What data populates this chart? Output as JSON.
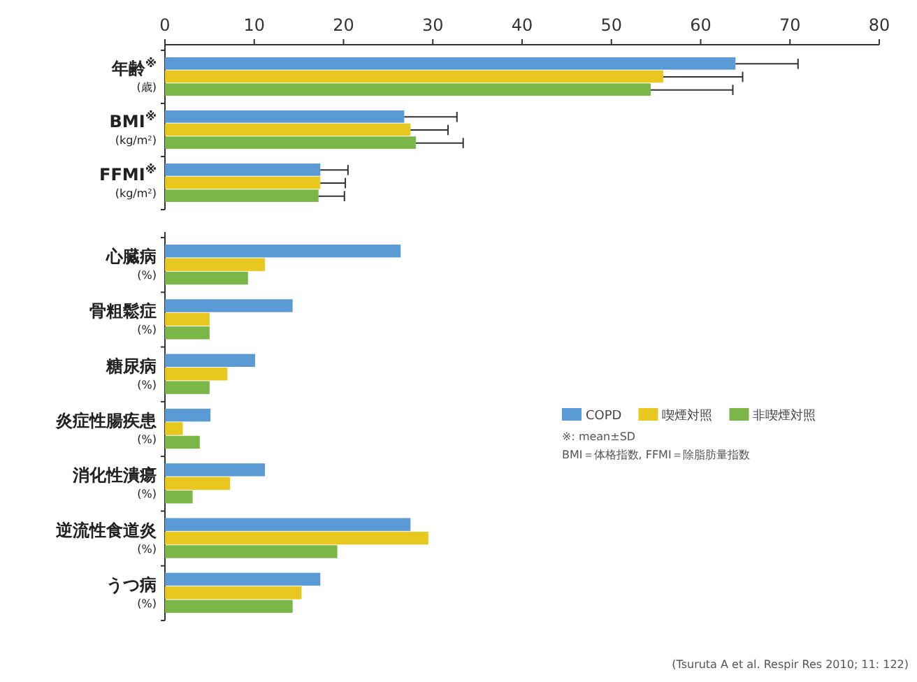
{
  "chart_data": [
    {
      "type": "bar",
      "orientation": "horizontal",
      "categories": [
        "年齢$^{※}$\n(歳)",
        "BMI$^{※}$\n(kg/m²)",
        "FFMI$^{※}$\n(kg/m²)"
      ],
      "series": [
        {
          "color": "#5b9bd5",
          "values": [
            63.9,
            26.8,
            17.4
          ],
          "errors": [
            7.0,
            5.9,
            3.1
          ]
        },
        {
          "color": "#e8c81e",
          "values": [
            55.8,
            27.5,
            17.4
          ],
          "errors": [
            8.9,
            4.2,
            2.8
          ]
        },
        {
          "color": "#7ab648",
          "values": [
            54.4,
            28.1,
            17.2
          ],
          "errors": [
            9.2,
            5.3,
            2.9
          ]
        }
      ],
      "xlim": [
        0,
        80
      ],
      "xticks": [
        0,
        10,
        20,
        30,
        40,
        50,
        60,
        70,
        80
      ]
    },
    {
      "type": "bar",
      "orientation": "horizontal",
      "categories": [
        "心臓病\n(%)",
        "骨粗鬆症\n(%)",
        "糖尿病\n(%)",
        "炎症性腸疾患\n(%)",
        "消化性潰瘍\n(%)",
        "逆流性食道炎\n(%)",
        "うつ病\n(%)"
      ],
      "series": [
        {
          "name": "COPD",
          "color": "#5b9bd5",
          "values": [
            26.4,
            14.3,
            10.1,
            5.1,
            11.2,
            27.5,
            17.4
          ]
        },
        {
          "name": "喫煙対照",
          "color": "#e8c81e",
          "values": [
            11.2,
            5,
            7,
            2,
            7.3,
            29.5,
            15.3
          ]
        },
        {
          "name": "非喫煙対照",
          "color": "#7ab648",
          "values": [
            9.3,
            5,
            5,
            3.9,
            3.1,
            19.3,
            14.3
          ]
        }
      ],
      "xlim": [
        0,
        80
      ],
      "tick_labels": "y",
      "legend": "right",
      "annotations": [
        "※: mean±SD",
        "BMI＝体格指数, FFMI＝除脂肪量指数",
        "(Tsuruta A et al. Respir Res 2010; 11: 122)"
      ]
    }
  ]
}
